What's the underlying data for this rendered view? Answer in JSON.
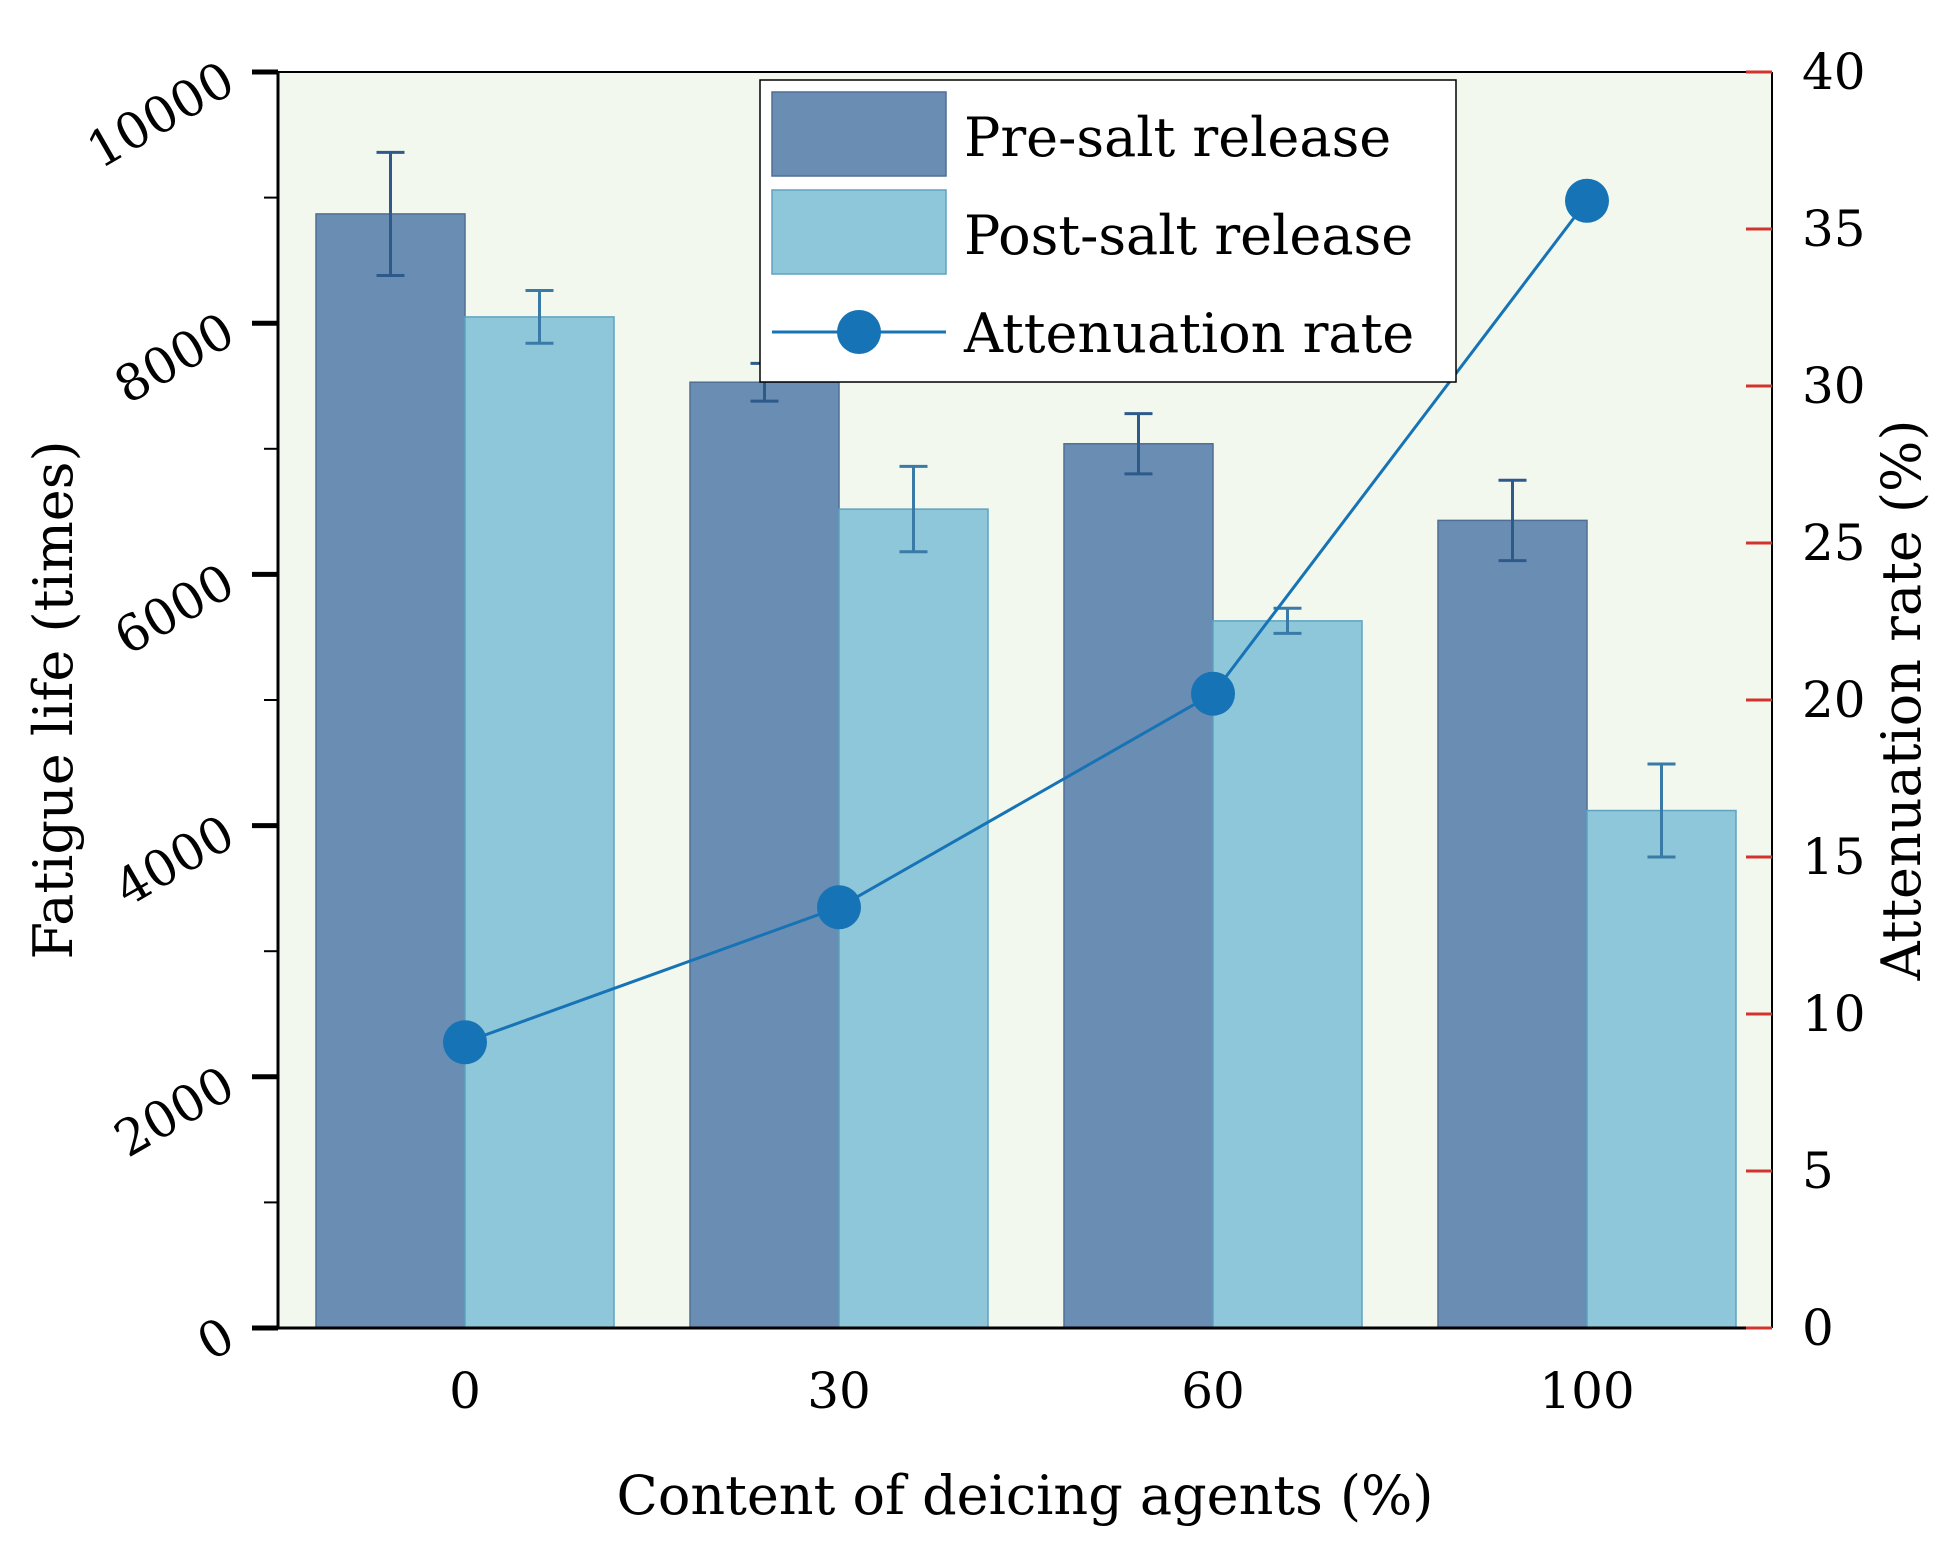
{
  "chart_data": {
    "type": "bar",
    "categories": [
      "0",
      "30",
      "60",
      "100"
    ],
    "xlabel": "Content of deicing agents (%)",
    "ylabel": "Fatigue life (times)",
    "y2label": "Attenuation rate (%)",
    "ylim": [
      0,
      10000
    ],
    "y2lim": [
      0,
      40
    ],
    "yticks": [
      "0",
      "2000",
      "4000",
      "6000",
      "8000",
      "10000"
    ],
    "y2ticks": [
      "0",
      "5",
      "10",
      "15",
      "20",
      "25",
      "30",
      "35",
      "40"
    ],
    "grid": false,
    "legend_position": "top-center",
    "series": [
      {
        "name": "Pre-salt release",
        "type": "bar",
        "axis": "left",
        "color": "#6a8db3",
        "values": [
          8870,
          7530,
          7040,
          6430
        ],
        "error": [
          490,
          150,
          240,
          320
        ]
      },
      {
        "name": "Post-salt release",
        "type": "bar",
        "axis": "left",
        "color": "#8ec6da",
        "values": [
          8050,
          6520,
          5630,
          4120
        ],
        "error": [
          210,
          340,
          100,
          370
        ]
      },
      {
        "name": "Attenuation rate",
        "type": "line",
        "axis": "right",
        "color": "#1673b5",
        "marker": "circle",
        "values": [
          9.1,
          13.4,
          20.2,
          35.9
        ]
      }
    ],
    "colors": {
      "plot_background": "#f3f8ee",
      "right_axis_ticks": "#d0342c",
      "axis": "#000000"
    }
  }
}
